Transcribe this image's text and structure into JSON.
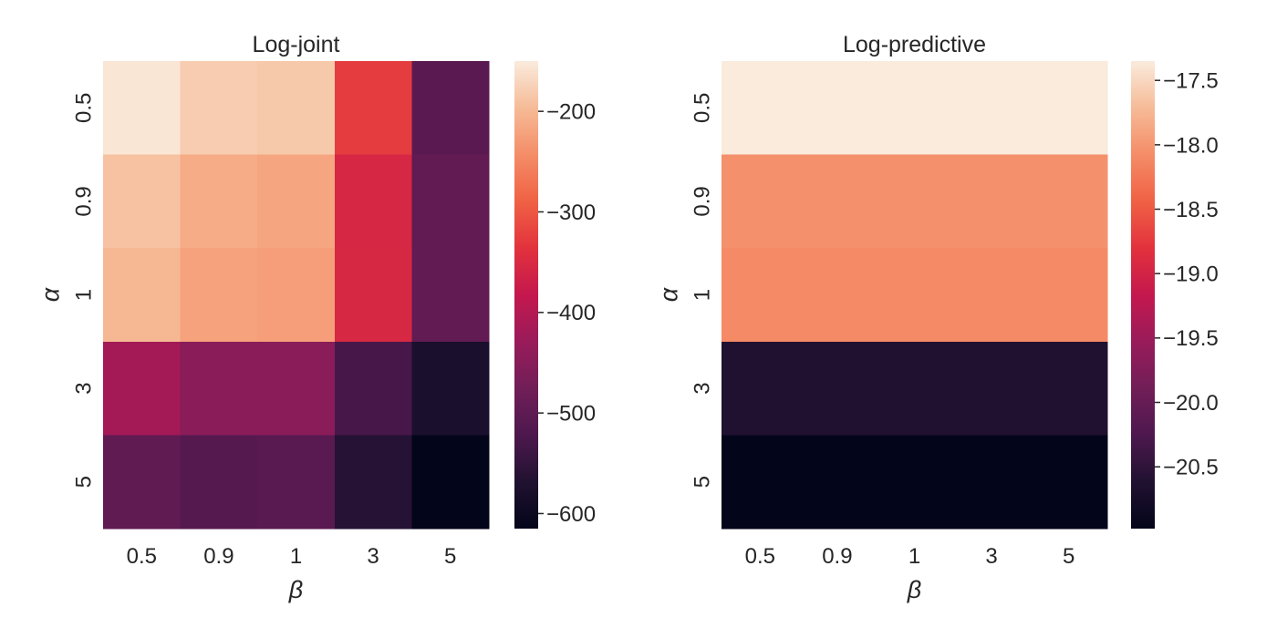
{
  "chart_data": [
    {
      "type": "heatmap",
      "title": "Log-joint",
      "xlabel": "β",
      "ylabel": "α",
      "x_categories": [
        "0.5",
        "0.9",
        "1",
        "3",
        "5"
      ],
      "y_categories": [
        "0.5",
        "0.9",
        "1",
        "3",
        "5"
      ],
      "values": [
        [
          -155,
          -180,
          -183,
          -325,
          -505
        ],
        [
          -190,
          -212,
          -218,
          -355,
          -495
        ],
        [
          -200,
          -222,
          -226,
          -353,
          -495
        ],
        [
          -418,
          -448,
          -448,
          -528,
          -578
        ],
        [
          -498,
          -512,
          -508,
          -563,
          -615
        ]
      ],
      "colorbar": {
        "vmin": -615,
        "vmax": -150,
        "ticks": [
          -200,
          -300,
          -400,
          -500,
          -600
        ],
        "tick_labels": [
          "−200",
          "−300",
          "−400",
          "−500",
          "−600"
        ]
      },
      "colormap": "rocket",
      "grid": false
    },
    {
      "type": "heatmap",
      "title": "Log-predictive",
      "xlabel": "β",
      "ylabel": "α",
      "x_categories": [
        "0.5",
        "0.9",
        "1",
        "3",
        "5"
      ],
      "y_categories": [
        "0.5",
        "0.9",
        "1",
        "3",
        "5"
      ],
      "values": [
        [
          -17.35,
          -17.35,
          -17.35,
          -17.35,
          -17.35
        ],
        [
          -18.05,
          -18.05,
          -18.05,
          -18.05,
          -18.05
        ],
        [
          -18.1,
          -18.1,
          -18.1,
          -18.1,
          -18.1
        ],
        [
          -20.62,
          -20.62,
          -20.62,
          -20.62,
          -20.62
        ],
        [
          -20.98,
          -20.98,
          -20.98,
          -20.98,
          -20.98
        ]
      ],
      "colorbar": {
        "vmin": -20.98,
        "vmax": -17.35,
        "ticks": [
          -17.5,
          -18.0,
          -18.5,
          -19.0,
          -19.5,
          -20.0,
          -20.5
        ],
        "tick_labels": [
          "−17.5",
          "−18.0",
          "−18.5",
          "−19.0",
          "−19.5",
          "−20.0",
          "−20.5"
        ]
      },
      "colormap": "rocket",
      "grid": false
    }
  ]
}
